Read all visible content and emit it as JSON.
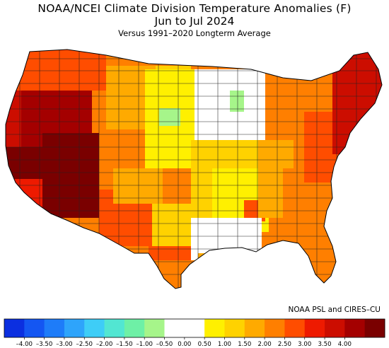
{
  "title": {
    "line1": "NOAA/NCEI Climate Division Temperature Anomalies (F)",
    "line2": "Jun to Jul 2024",
    "line3": "Versus 1991–2020 Longterm Average"
  },
  "credit": "NOAA PSL and CIRES–CU",
  "colorbar": {
    "tick_labels": [
      "–4.00",
      "–3.50",
      "–3.00",
      "–2.50",
      "–2.00",
      "–1.50",
      "–1.00",
      "–0.50",
      "0.00",
      "0.50",
      "1.00",
      "1.50",
      "2.00",
      "2.50",
      "3.00",
      "3.50",
      "4.00"
    ],
    "colors": [
      "#0b2fe0",
      "#1456f2",
      "#1e7cf9",
      "#2ea4fb",
      "#3ecdf7",
      "#52e6d2",
      "#6ef0a6",
      "#a6f58a",
      "#ffffff",
      "#ffffff",
      "#fff000",
      "#ffd200",
      "#ffaa00",
      "#ff7f00",
      "#ff4d00",
      "#ee1a00",
      "#cc0d00",
      "#a40000",
      "#7a0000"
    ]
  },
  "map_legend_colors": {
    "cool_slight": "#a6f58a",
    "neutral": "#ffffff",
    "anom_0_5": "#fff000",
    "anom_1_0": "#ffd200",
    "anom_1_5": "#ffaa00",
    "anom_2_0": "#ff7f00",
    "anom_2_5": "#ff4d00",
    "anom_3_0": "#ee1a00",
    "anom_3_5": "#cc0d00",
    "anom_4_0": "#a40000",
    "anom_max": "#7a0000"
  }
}
